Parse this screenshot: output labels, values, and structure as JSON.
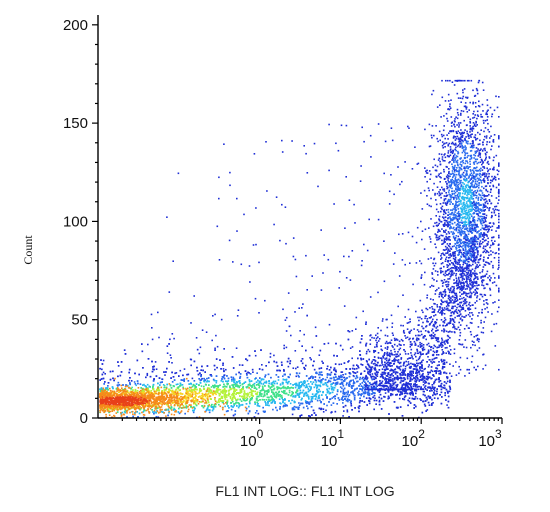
{
  "chart_data": {
    "type": "scatter",
    "style": "density-dot-plot",
    "title": "",
    "xlabel": "FL1 INT LOG:: FL1 INT LOG",
    "ylabel": "Count",
    "xscale": "log",
    "xlim": [
      0.01,
      1000
    ],
    "ylim": [
      0,
      205
    ],
    "xticks": [
      {
        "value": 1,
        "base": "10",
        "exp": "0"
      },
      {
        "value": 10,
        "base": "10",
        "exp": "1"
      },
      {
        "value": 100,
        "base": "10",
        "exp": "2"
      },
      {
        "value": 1000,
        "base": "10",
        "exp": "3"
      }
    ],
    "yticks": [
      {
        "value": 0,
        "label": "0"
      },
      {
        "value": 50,
        "label": "50"
      },
      {
        "value": 100,
        "label": "100"
      },
      {
        "value": 150,
        "label": "150"
      },
      {
        "value": 200,
        "label": "200"
      }
    ],
    "grid": false,
    "legend": "none",
    "colormap": [
      "#1f2fd6",
      "#2a6bef",
      "#26b8f0",
      "#3fe08a",
      "#b4f23a",
      "#f7d21e",
      "#f58a1a",
      "#e8401a"
    ],
    "populations": [
      {
        "region": "baseline band",
        "x_range": [
          0.01,
          200
        ],
        "y_range": [
          0,
          35
        ],
        "peak_density": "high",
        "peak_x": 0.02,
        "peak_y": 8
      },
      {
        "region": "upper right cluster",
        "x_range": [
          100,
          900
        ],
        "y_range": [
          30,
          170
        ],
        "center_x": 350,
        "center_y": 110,
        "peak_density": "medium"
      },
      {
        "region": "sparse background",
        "x_range": [
          0.05,
          600
        ],
        "y_range": [
          20,
          170
        ],
        "peak_density": "low"
      }
    ]
  }
}
